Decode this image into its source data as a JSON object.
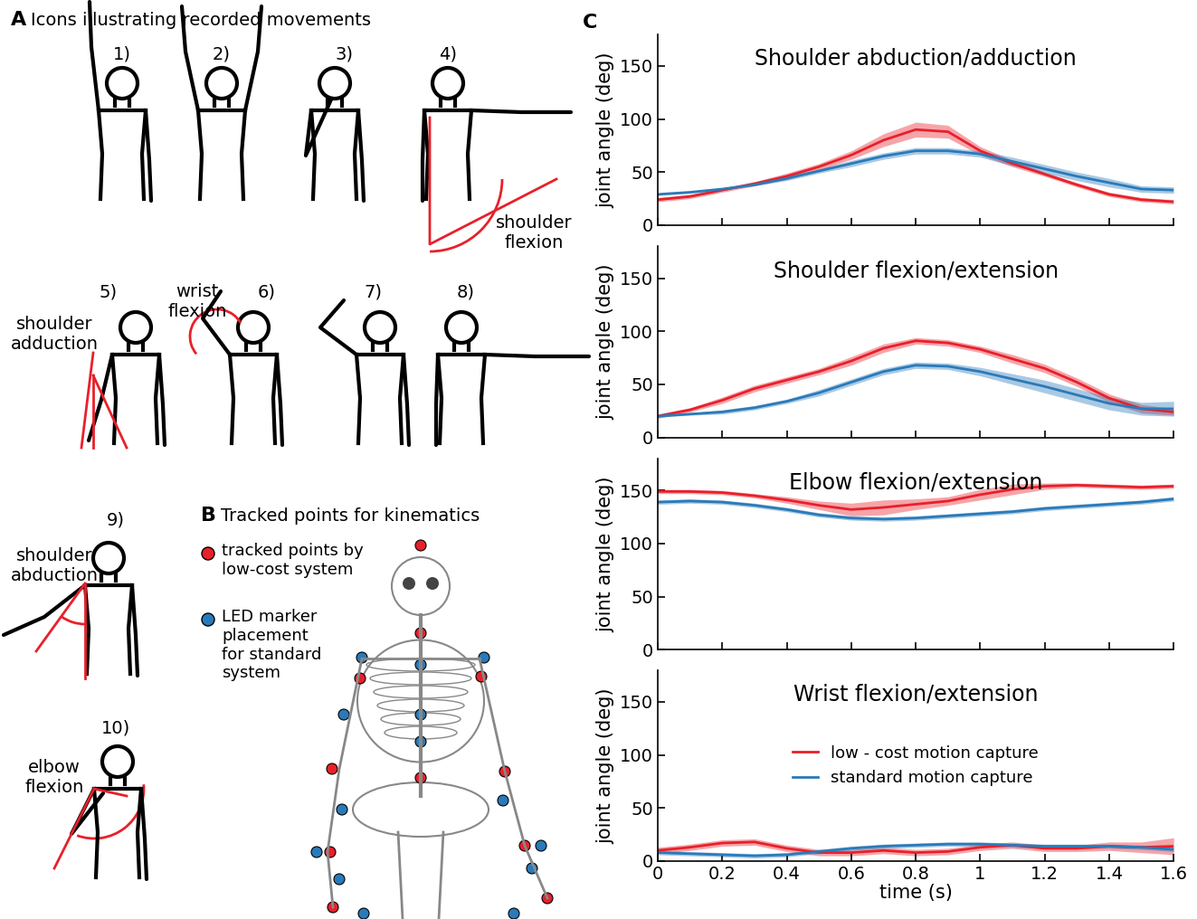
{
  "panel_a": {
    "label": "A",
    "title": "Icons illustrating recorded movements",
    "icons": [
      {
        "number": "1)"
      },
      {
        "number": "2)"
      },
      {
        "number": "3)"
      },
      {
        "number": "4)",
        "note": "shoulder\nflexion"
      },
      {
        "number": "5)",
        "note": "shoulder\nadduction"
      },
      {
        "number": "6)",
        "note": "wrist\nflexion"
      },
      {
        "number": "7)"
      },
      {
        "number": "8)"
      },
      {
        "number": "9)",
        "note": "shoulder\nabduction"
      },
      {
        "number": "10)",
        "note": "elbow\nflexion"
      }
    ]
  },
  "panel_b": {
    "label": "B",
    "title": "Tracked points for kinematics",
    "legend": [
      {
        "text": "tracked points by\nlow-cost system",
        "color": "#e8202a"
      },
      {
        "text": "LED marker\nplacement\nfor standard\nsystem",
        "color": "#2a7ab9"
      }
    ]
  },
  "panel_c_label": "C",
  "chart_data": [
    {
      "type": "line",
      "title": "Shoulder abduction/adduction",
      "y_label": "joint angle (deg)",
      "x": [
        0,
        0.1,
        0.2,
        0.3,
        0.4,
        0.5,
        0.6,
        0.7,
        0.8,
        0.9,
        1.0,
        1.1,
        1.2,
        1.3,
        1.4,
        1.5,
        1.6
      ],
      "series": [
        {
          "color": "#e8202a",
          "values": [
            24,
            27,
            33,
            39,
            46,
            55,
            66,
            80,
            90,
            88,
            70,
            58,
            48,
            38,
            29,
            24,
            22
          ],
          "error": [
            2,
            2,
            2,
            2,
            3,
            3,
            4,
            6,
            7,
            6,
            4,
            3,
            2,
            2,
            2,
            2,
            2
          ]
        },
        {
          "color": "#2a7ab9",
          "values": [
            29,
            31,
            34,
            38,
            44,
            51,
            58,
            65,
            70,
            70,
            67,
            60,
            53,
            46,
            40,
            34,
            33
          ],
          "error": [
            1,
            1,
            1,
            1,
            2,
            2,
            3,
            3,
            3,
            3,
            3,
            4,
            4,
            4,
            4,
            3,
            3
          ]
        }
      ],
      "xlim": [
        0,
        1.6
      ],
      "xticks": [
        0,
        0.2,
        0.4,
        0.6,
        0.8,
        1,
        1.2,
        1.4,
        1.6
      ],
      "ylim": [
        0,
        180
      ],
      "yticks": [
        0,
        50,
        100,
        150
      ],
      "tick_labels": "y"
    },
    {
      "type": "line",
      "title": "Shoulder flexion/extension",
      "y_label": "joint angle (deg)",
      "x": [
        0,
        0.1,
        0.2,
        0.3,
        0.4,
        0.5,
        0.6,
        0.7,
        0.8,
        0.9,
        1.0,
        1.1,
        1.2,
        1.3,
        1.4,
        1.5,
        1.6
      ],
      "series": [
        {
          "color": "#e8202a",
          "values": [
            20,
            26,
            35,
            46,
            54,
            62,
            72,
            84,
            91,
            89,
            83,
            74,
            65,
            52,
            37,
            27,
            24
          ],
          "error": [
            2,
            2,
            3,
            3,
            3,
            3,
            4,
            4,
            3,
            3,
            3,
            4,
            4,
            4,
            4,
            4,
            3
          ]
        },
        {
          "color": "#2a7ab9",
          "values": [
            20,
            22,
            24,
            28,
            34,
            42,
            52,
            62,
            68,
            67,
            62,
            55,
            48,
            40,
            32,
            27,
            27
          ],
          "error": [
            1,
            1,
            2,
            2,
            2,
            3,
            3,
            3,
            3,
            3,
            4,
            5,
            6,
            6,
            6,
            6,
            7
          ]
        }
      ],
      "xlim": [
        0,
        1.6
      ],
      "xticks": [
        0,
        0.2,
        0.4,
        0.6,
        0.8,
        1,
        1.2,
        1.4,
        1.6
      ],
      "ylim": [
        0,
        180
      ],
      "yticks": [
        0,
        50,
        100,
        150
      ],
      "tick_labels": "y"
    },
    {
      "type": "line",
      "title": "Elbow flexion/extension",
      "y_label": "joint angle (deg)",
      "x": [
        0,
        0.1,
        0.2,
        0.3,
        0.4,
        0.5,
        0.6,
        0.7,
        0.8,
        0.9,
        1.0,
        1.1,
        1.2,
        1.3,
        1.4,
        1.5,
        1.6
      ],
      "series": [
        {
          "color": "#e8202a",
          "values": [
            149,
            149,
            148,
            145,
            141,
            136,
            132,
            134,
            137,
            140,
            146,
            151,
            154,
            155,
            154,
            153,
            154
          ],
          "error": [
            2,
            2,
            2,
            2,
            3,
            4,
            6,
            7,
            5,
            4,
            5,
            5,
            3,
            2,
            2,
            2,
            2
          ]
        },
        {
          "color": "#2a7ab9",
          "values": [
            139,
            140,
            139,
            136,
            132,
            127,
            124,
            123,
            124,
            126,
            128,
            130,
            133,
            135,
            137,
            139,
            142
          ],
          "error": [
            2,
            2,
            2,
            2,
            2,
            2,
            2,
            2,
            2,
            2,
            2,
            2,
            2,
            2,
            2,
            2,
            2
          ]
        }
      ],
      "xlim": [
        0,
        1.6
      ],
      "xticks": [
        0,
        0.2,
        0.4,
        0.6,
        0.8,
        1,
        1.2,
        1.4,
        1.6
      ],
      "ylim": [
        0,
        180
      ],
      "yticks": [
        0,
        50,
        100,
        150
      ],
      "tick_labels": "y"
    },
    {
      "type": "line",
      "title": "Wrist flexion/extension",
      "y_label": "joint angle (deg)",
      "x_label": "time (s)",
      "x": [
        0,
        0.1,
        0.2,
        0.3,
        0.4,
        0.5,
        0.6,
        0.7,
        0.8,
        0.9,
        1.0,
        1.1,
        1.2,
        1.3,
        1.4,
        1.5,
        1.6
      ],
      "series": [
        {
          "name": "low - cost motion capture",
          "color": "#e8202a",
          "values": [
            10,
            13,
            17,
            18,
            12,
            8,
            8,
            10,
            8,
            9,
            13,
            15,
            12,
            12,
            14,
            13,
            14
          ],
          "error": [
            3,
            3,
            3,
            3,
            3,
            3,
            3,
            3,
            3,
            3,
            3,
            3,
            3,
            3,
            4,
            5,
            8
          ]
        },
        {
          "name": "standard motion capture",
          "color": "#2a7ab9",
          "values": [
            8,
            7,
            6,
            5,
            6,
            9,
            12,
            14,
            15,
            16,
            16,
            15,
            14,
            14,
            14,
            13,
            11
          ],
          "error": [
            2,
            2,
            2,
            2,
            2,
            2,
            2,
            2,
            2,
            2,
            2,
            2,
            2,
            2,
            2,
            2,
            2
          ]
        }
      ],
      "xlim": [
        0,
        1.6
      ],
      "xticks": [
        0,
        0.2,
        0.4,
        0.6,
        0.8,
        1,
        1.2,
        1.4,
        1.6
      ],
      "ylim": [
        0,
        180
      ],
      "yticks": [
        0,
        50,
        100,
        150
      ],
      "legend": "center"
    }
  ]
}
